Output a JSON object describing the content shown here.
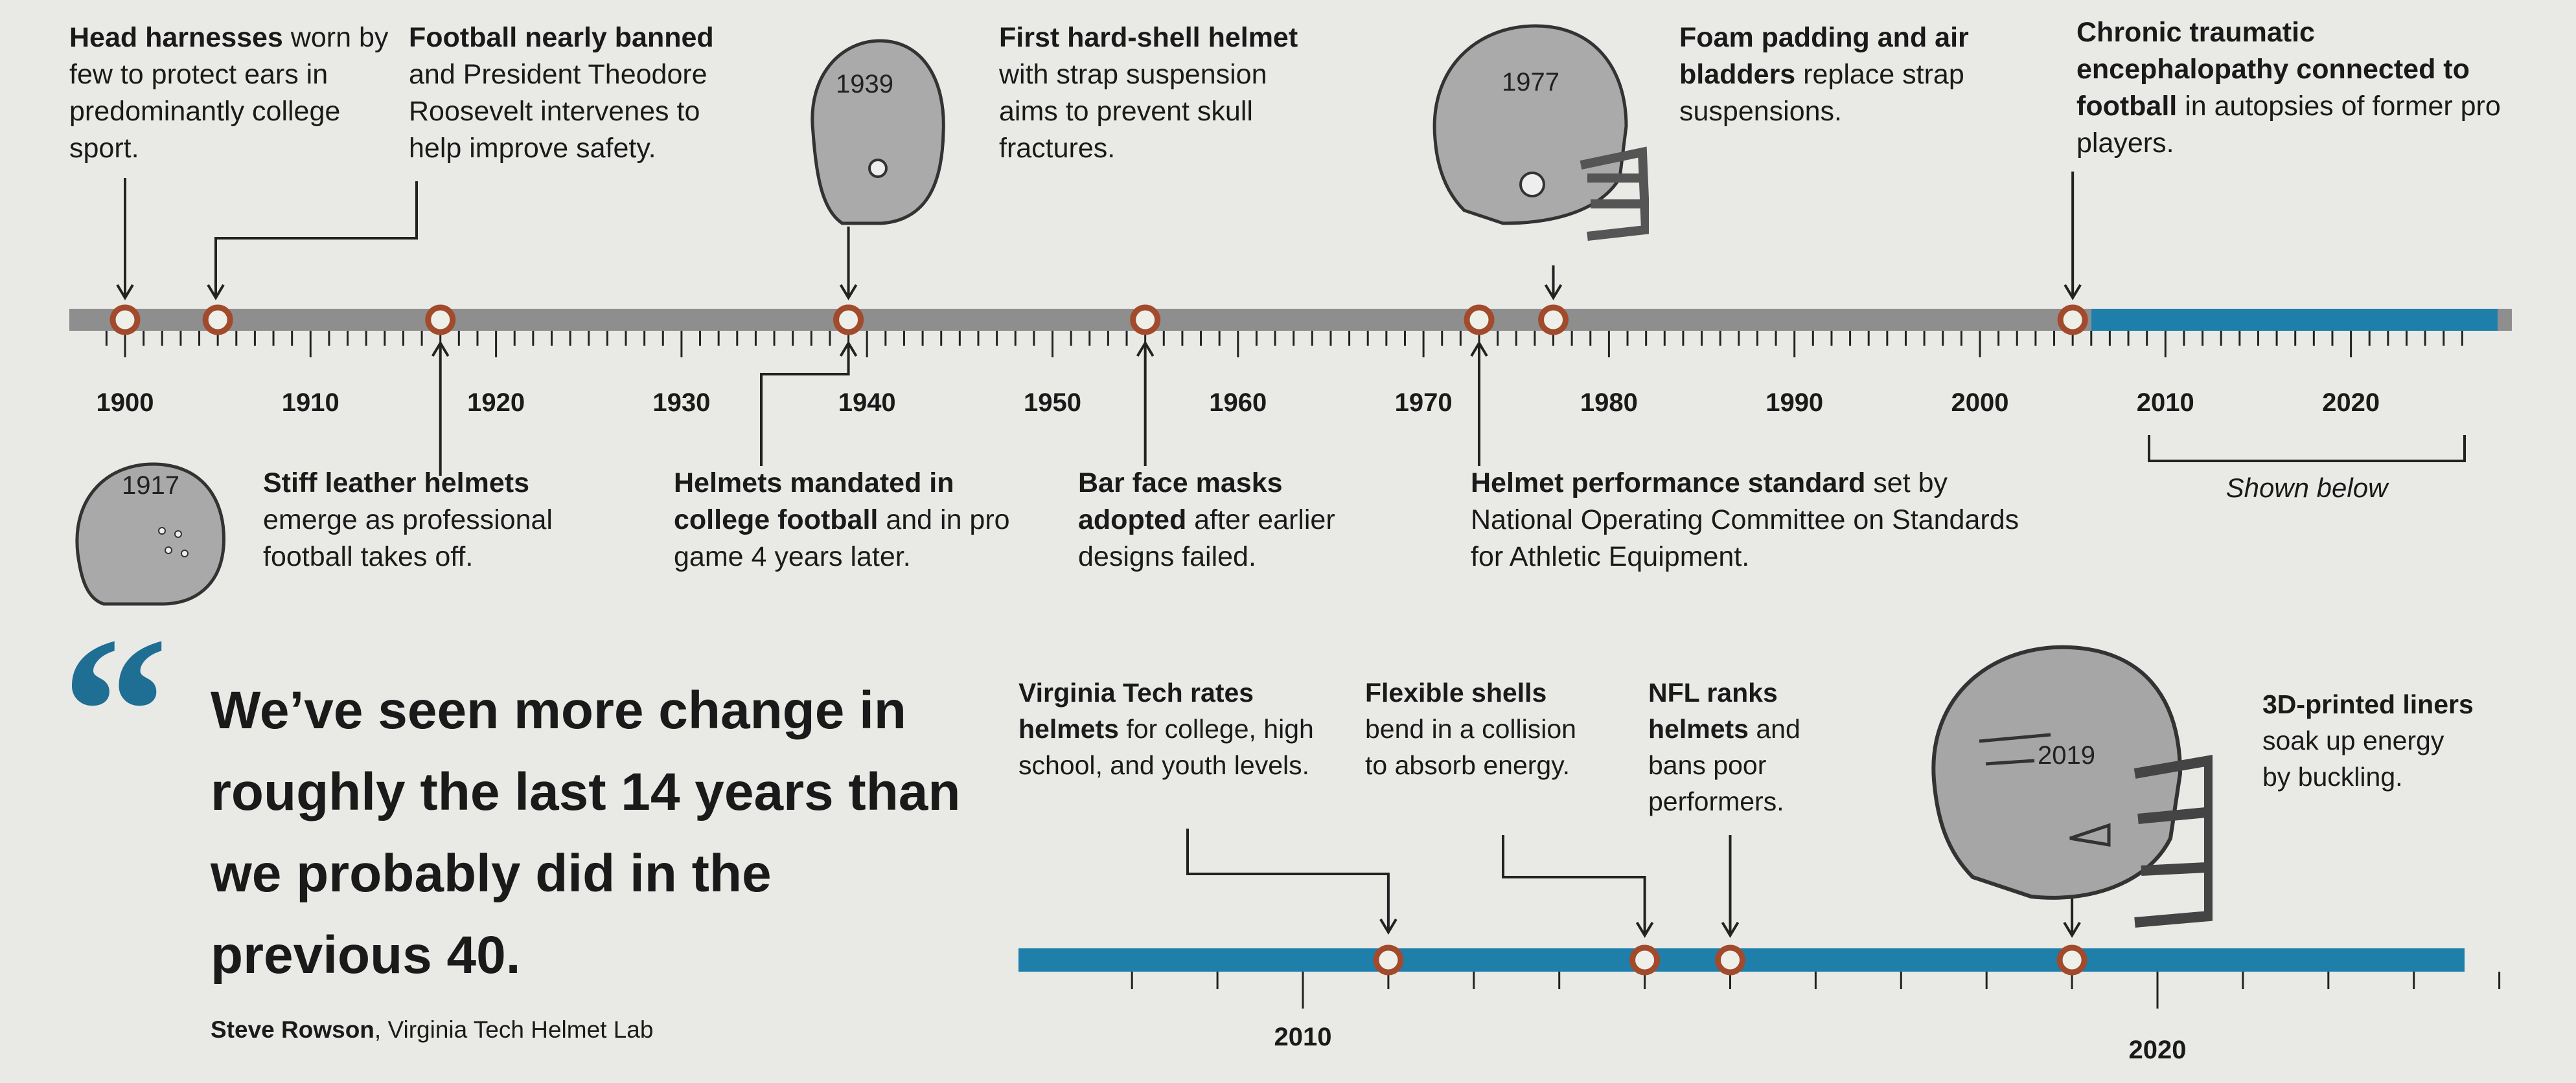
{
  "colors": {
    "gray_bar": "#8e8e8e",
    "blue_bar": "#1f7fab",
    "marker": "#a24a2c",
    "quote_mark": "#1f6e93"
  },
  "top_timeline": {
    "range": [
      1899,
      2026
    ],
    "blue_from": 2006,
    "year_labels": [
      "1900",
      "1910",
      "1920",
      "1930",
      "1940",
      "1950",
      "1960",
      "1970",
      "1980",
      "1990",
      "2000",
      "2010",
      "2020"
    ],
    "events": [
      {
        "year": 1900,
        "bold": "Head harnesses",
        "text": " worn by few to protect ears in predominantly college sport."
      },
      {
        "year": 1905,
        "bold": "Football nearly banned",
        "text": " and President Theodore Roosevelt intervenes to help improve safety."
      },
      {
        "year": 1917,
        "bold": "Stiff leather helmets",
        "text": " emerge as professional football takes off."
      },
      {
        "year": 1939,
        "bold": "First hard-shell helmet",
        "text": " with strap suspension aims to prevent skull fractures."
      },
      {
        "year": 1939,
        "bold": "Helmets mandated in college football",
        "text": " and in pro game 4 years later."
      },
      {
        "year": 1955,
        "bold": "Bar face masks adopted",
        "text": " after earlier designs failed."
      },
      {
        "year": 1973,
        "bold": "Helmet performance standard",
        "text": " set by National Operating Committee on Standards for Athletic Equipment."
      },
      {
        "year": 1977,
        "bold": "Foam padding and air bladders",
        "text": " replace strap suspensions."
      },
      {
        "year": 2005,
        "bold": "Chronic traumatic encephalopathy connected to football",
        "text": " in autopsies of former pro players."
      }
    ],
    "shown_below": "Shown below"
  },
  "bottom_timeline": {
    "range": [
      2008,
      2025
    ],
    "year_labels": [
      "2010",
      "2020"
    ],
    "events": [
      {
        "year": 2011,
        "bold": "Virginia Tech rates helmets",
        "text": " for college, high school, and youth levels."
      },
      {
        "year": 2014,
        "bold": "Flexible shells",
        "text": " bend in a collision to absorb energy."
      },
      {
        "year": 2015,
        "bold": "NFL ranks helmets",
        "text": " and bans poor performers."
      },
      {
        "year": 2019,
        "bold": "3D-printed liners",
        "text": " soak up energy by buckling."
      }
    ]
  },
  "helmets": {
    "h1917": "1917",
    "h1939": "1939",
    "h1977": "1977",
    "h2019": "2019"
  },
  "quote": {
    "mark": "“",
    "text": "We’ve seen more change in roughly the last 14 years than we probably did in the previous 40.",
    "author": "Steve Rowson",
    "affiliation": ", Virginia Tech Helmet Lab"
  }
}
